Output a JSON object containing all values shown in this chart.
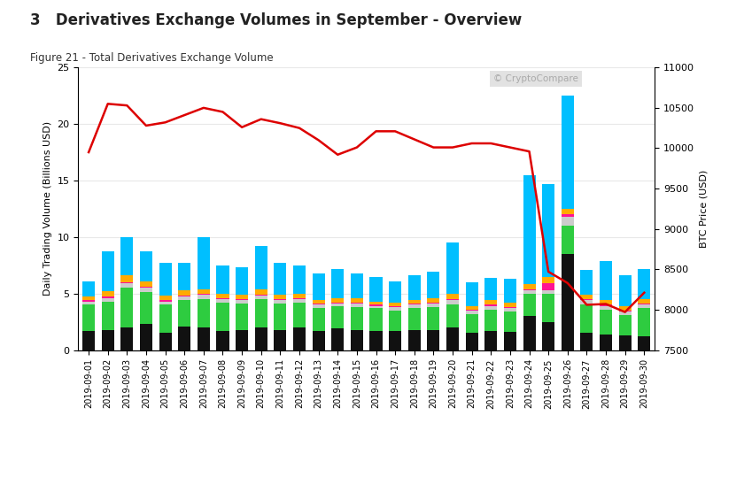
{
  "title": "3   Derivatives Exchange Volumes in September - Overview",
  "subtitle": "Figure 21 - Total Derivatives Exchange Volume",
  "ylabel_left": "Daily Trading Volume (Billions USD)",
  "ylabel_right": "BTC Price (USD)",
  "watermark": "© CryptoCompare",
  "dates": [
    "2019-09-01",
    "2019-09-02",
    "2019-09-03",
    "2019-09-04",
    "2019-09-05",
    "2019-09-06",
    "2019-09-07",
    "2019-09-08",
    "2019-09-09",
    "2019-09-10",
    "2019-09-11",
    "2019-09-12",
    "2019-09-13",
    "2019-09-14",
    "2019-09-15",
    "2019-09-16",
    "2019-09-17",
    "2019-09-18",
    "2019-09-19",
    "2019-09-20",
    "2019-09-21",
    "2019-09-22",
    "2019-09-23",
    "2019-09-24",
    "2019-09-25",
    "2019-09-26",
    "2019-09-27",
    "2019-09-28",
    "2019-09-29",
    "2019-09-30"
  ],
  "huobi": [
    1.7,
    1.8,
    2.0,
    2.3,
    1.5,
    2.1,
    2.0,
    1.7,
    1.8,
    2.0,
    1.8,
    2.0,
    1.7,
    1.9,
    1.8,
    1.7,
    1.7,
    1.8,
    1.8,
    2.0,
    1.5,
    1.7,
    1.6,
    3.0,
    2.5,
    8.5,
    1.5,
    1.4,
    1.3,
    1.2
  ],
  "okex": [
    2.3,
    2.5,
    3.5,
    2.8,
    2.5,
    2.3,
    2.5,
    2.5,
    2.3,
    2.5,
    2.3,
    2.2,
    2.0,
    2.0,
    2.0,
    2.0,
    1.8,
    1.9,
    2.0,
    2.0,
    1.7,
    1.9,
    1.8,
    2.0,
    2.5,
    2.5,
    2.5,
    2.2,
    1.8,
    2.5
  ],
  "deribit": [
    0.3,
    0.3,
    0.4,
    0.4,
    0.3,
    0.3,
    0.4,
    0.3,
    0.3,
    0.3,
    0.3,
    0.3,
    0.3,
    0.2,
    0.3,
    0.2,
    0.3,
    0.3,
    0.3,
    0.4,
    0.3,
    0.3,
    0.3,
    0.3,
    0.3,
    0.8,
    0.4,
    0.3,
    0.3,
    0.3
  ],
  "cryptofacilities": [
    0.1,
    0.1,
    0.1,
    0.1,
    0.1,
    0.1,
    0.1,
    0.1,
    0.1,
    0.1,
    0.1,
    0.1,
    0.1,
    0.1,
    0.1,
    0.1,
    0.1,
    0.1,
    0.1,
    0.1,
    0.1,
    0.1,
    0.1,
    0.1,
    0.6,
    0.2,
    0.1,
    0.1,
    0.1,
    0.1
  ],
  "bitflyer": [
    0.3,
    0.5,
    0.6,
    0.5,
    0.4,
    0.5,
    0.4,
    0.4,
    0.4,
    0.5,
    0.4,
    0.4,
    0.3,
    0.4,
    0.4,
    0.3,
    0.3,
    0.3,
    0.4,
    0.5,
    0.3,
    0.4,
    0.4,
    0.4,
    0.6,
    0.5,
    0.4,
    0.4,
    0.4,
    0.4
  ],
  "bitmex": [
    1.4,
    3.5,
    3.4,
    2.6,
    2.9,
    2.4,
    4.6,
    2.5,
    2.4,
    3.8,
    2.8,
    2.5,
    2.4,
    2.6,
    2.2,
    2.2,
    1.9,
    2.2,
    2.3,
    4.5,
    2.1,
    2.0,
    2.1,
    9.7,
    8.2,
    10.0,
    2.2,
    3.5,
    2.7,
    2.7
  ],
  "btc_price": [
    9950,
    10550,
    10530,
    10280,
    10320,
    10410,
    10500,
    10450,
    10260,
    10360,
    10310,
    10250,
    10100,
    9920,
    10010,
    10210,
    10210,
    10110,
    10010,
    10010,
    10060,
    10060,
    10010,
    9960,
    8470,
    8330,
    8060,
    8070,
    7970,
    8210
  ],
  "colors": {
    "huobi": "#111111",
    "okex": "#2ecc40",
    "deribit": "#cccccc",
    "cryptofacilities": "#ff1493",
    "bitflyer": "#ffaa00",
    "bitmex": "#00bfff",
    "btc": "#dd0000"
  },
  "ylim_left": [
    0,
    25
  ],
  "ylim_right": [
    7500,
    11000
  ],
  "yticks_left": [
    0,
    5,
    10,
    15,
    20,
    25
  ],
  "yticks_right": [
    7500,
    8000,
    8500,
    9000,
    9500,
    10000,
    10500,
    11000
  ],
  "background_color": "#ffffff",
  "plot_bg_color": "#ffffff"
}
